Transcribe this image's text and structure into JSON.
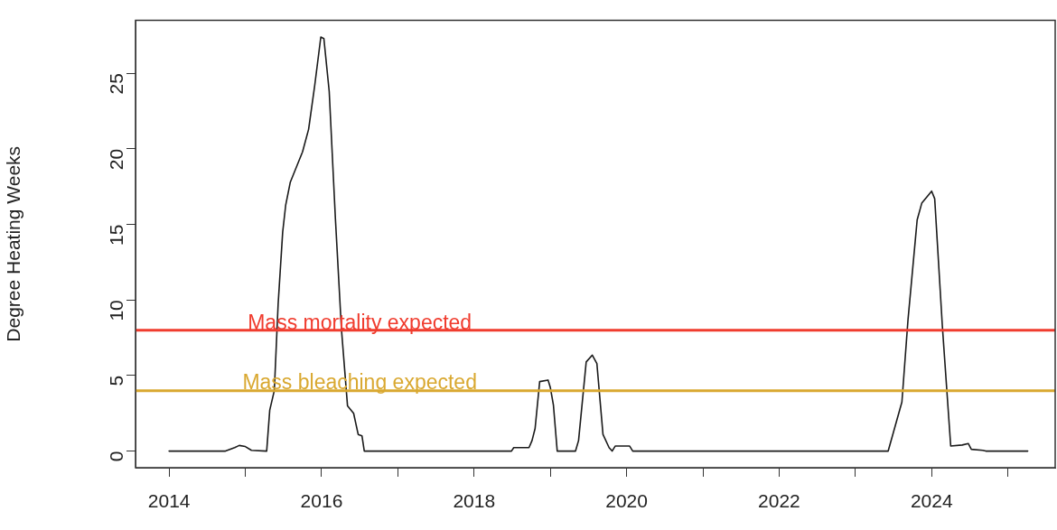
{
  "chart_data": {
    "type": "line",
    "ylabel": "Degree Heating Weeks",
    "xlim": [
      2013.56,
      2025.62
    ],
    "ylim": [
      -1.1,
      28.5
    ],
    "xticks": [
      2014,
      {
        "value": 2015,
        "label": null
      },
      2016,
      {
        "value": 2017,
        "label": null
      },
      2018,
      {
        "value": 2019,
        "label": null
      },
      2020,
      {
        "value": 2021,
        "label": null
      },
      2022,
      {
        "value": 2023,
        "label": null
      },
      2024,
      {
        "value": 2025,
        "label": null
      }
    ],
    "yticks": [
      0,
      5,
      10,
      15,
      20,
      25
    ],
    "grid": false,
    "legend": false,
    "marker": "none",
    "line_style": "solid",
    "series": [
      {
        "color": "#1a1a1a",
        "x": [
          2014.0,
          2014.74,
          2014.86,
          2014.92,
          2015.0,
          2015.08,
          2015.28,
          2015.32,
          2015.38,
          2015.43,
          2015.49,
          2015.53,
          2015.59,
          2015.75,
          2015.83,
          2015.91,
          2015.99,
          2016.03,
          2016.1,
          2016.18,
          2016.26,
          2016.34,
          2016.42,
          2016.48,
          2016.53,
          2016.56,
          2017.5,
          2018.49,
          2018.52,
          2018.72,
          2018.76,
          2018.8,
          2018.86,
          2018.97,
          2019.0,
          2019.04,
          2019.09,
          2019.33,
          2019.37,
          2019.47,
          2019.55,
          2019.61,
          2019.69,
          2019.77,
          2019.81,
          2019.85,
          2020.04,
          2020.08,
          2022.0,
          2023.43,
          2023.61,
          2023.69,
          2023.81,
          2023.87,
          2024.0,
          2024.04,
          2024.14,
          2024.25,
          2024.4,
          2024.48,
          2024.52,
          2024.67,
          2024.71,
          2025.26
        ],
        "values": [
          0,
          0,
          0.23,
          0.37,
          0.3,
          0.05,
          0,
          2.7,
          4.0,
          9.7,
          14.5,
          16.3,
          17.8,
          19.8,
          21.3,
          24.2,
          27.4,
          27.3,
          23.8,
          15.5,
          8.1,
          3.0,
          2.5,
          1.1,
          1.0,
          0,
          0,
          0,
          0.23,
          0.23,
          0.7,
          1.5,
          4.6,
          4.7,
          4.2,
          3.05,
          0,
          0,
          0.7,
          5.9,
          6.35,
          5.8,
          1.1,
          0.23,
          0,
          0.33,
          0.33,
          0,
          0,
          0,
          3.25,
          8.7,
          15.3,
          16.4,
          17.2,
          16.7,
          8.3,
          0.33,
          0.4,
          0.5,
          0.12,
          0.05,
          0,
          0
        ]
      }
    ],
    "ref_lines": [
      {
        "axis": "y",
        "value": 8,
        "label": "Mass mortality expected",
        "color": "#f03c2e"
      },
      {
        "axis": "y",
        "value": 4,
        "label": "Mass bleaching expected",
        "color": "#d9a830"
      }
    ]
  }
}
